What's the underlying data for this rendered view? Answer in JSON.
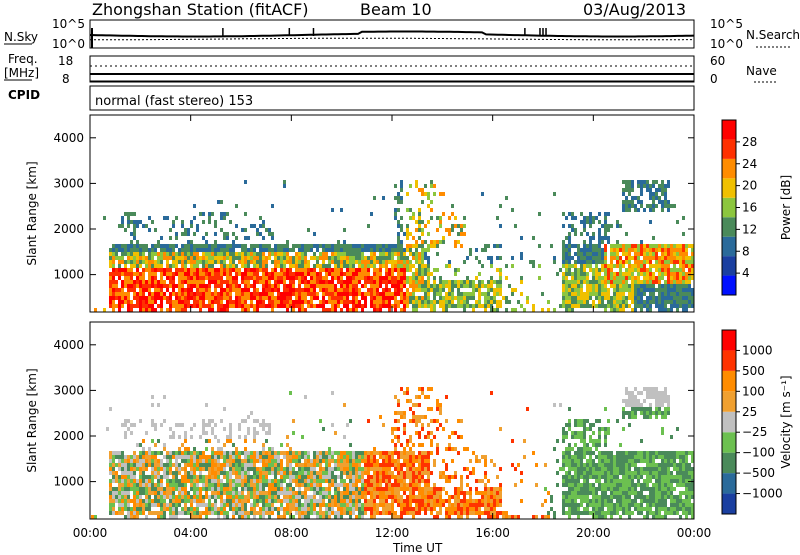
{
  "header": {
    "station": "Zhongshan Station (fitACF)",
    "beam": "Beam 10",
    "date": "03/Aug/2013"
  },
  "panels": {
    "nsky": {
      "label": "N.Sky",
      "ticks": [
        "10^5",
        "10^0"
      ],
      "right_label": "N.Search",
      "right_ticks": [
        "10^5",
        "10^0"
      ]
    },
    "freq": {
      "label_top": "Freq.",
      "label_bottom": "[MHz]",
      "ticks": [
        "18",
        "8"
      ],
      "right_label": "Nave",
      "right_ticks": [
        "60",
        "0"
      ]
    },
    "cpid": {
      "label": "CPID",
      "text": "normal (fast stereo) 153"
    }
  },
  "colors": {
    "power_scale": [
      "#0010ff",
      "#1a3fa0",
      "#2a6a9a",
      "#4a8a5a",
      "#8cc63e",
      "#f0c000",
      "#ff8c00",
      "#ff3000",
      "#ff0000"
    ],
    "velocity_scale": [
      "#ff0000",
      "#ff3300",
      "#ff8c00",
      "#f0a030",
      "#c0c0c0",
      "#6cc050",
      "#4a8a5a",
      "#2a6a9a",
      "#1a3fa0"
    ]
  },
  "chart_data": [
    {
      "type": "heatmap",
      "title": "Power",
      "ylabel": "Slant Range [km]",
      "ylim": [
        180,
        4500
      ],
      "y_ticks": [
        "1000",
        "2000",
        "3000",
        "4000"
      ],
      "colorbar_label": "Power [dB]",
      "colorbar_ticks": [
        "4",
        "8",
        "12",
        "16",
        "20",
        "24",
        "28"
      ],
      "colorbar_range": [
        0,
        32
      ]
    },
    {
      "type": "heatmap",
      "title": "Velocity",
      "ylabel": "Slant Range [km]",
      "ylim": [
        180,
        4500
      ],
      "y_ticks": [
        "1000",
        "2000",
        "3000",
        "4000"
      ],
      "colorbar_label": "Velocity [m s⁻¹]",
      "colorbar_ticks": [
        "1000",
        "500",
        "100",
        "25",
        "−25",
        "−100",
        "−500",
        "−1000"
      ],
      "x_ticks": [
        "00:00",
        "04:00",
        "08:00",
        "12:00",
        "16:00",
        "20:00",
        "00:00"
      ],
      "xlabel": "Time UT",
      "xlim": [
        0,
        24
      ]
    }
  ]
}
